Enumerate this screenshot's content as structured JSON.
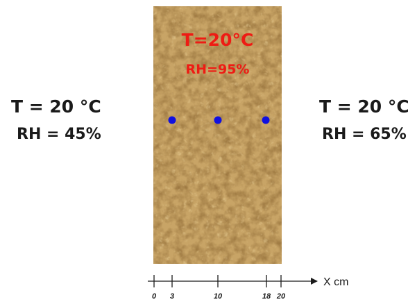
{
  "left": {
    "temperature": "T = 20 °C",
    "humidity": "RH = 45%"
  },
  "right": {
    "temperature": "T = 20 °C",
    "humidity": "RH = 65%"
  },
  "specimen": {
    "temperature": "T=20°C",
    "humidity": "RH=95%",
    "texture_color": "#c8a466",
    "sensor_color": "#1010e0",
    "label_color": "#ee1b14"
  },
  "axis": {
    "unit_label": "X cm",
    "ticks": [
      "0",
      "3",
      "10",
      "18",
      "20"
    ],
    "sensor_positions_cm": [
      3,
      10,
      18
    ]
  }
}
